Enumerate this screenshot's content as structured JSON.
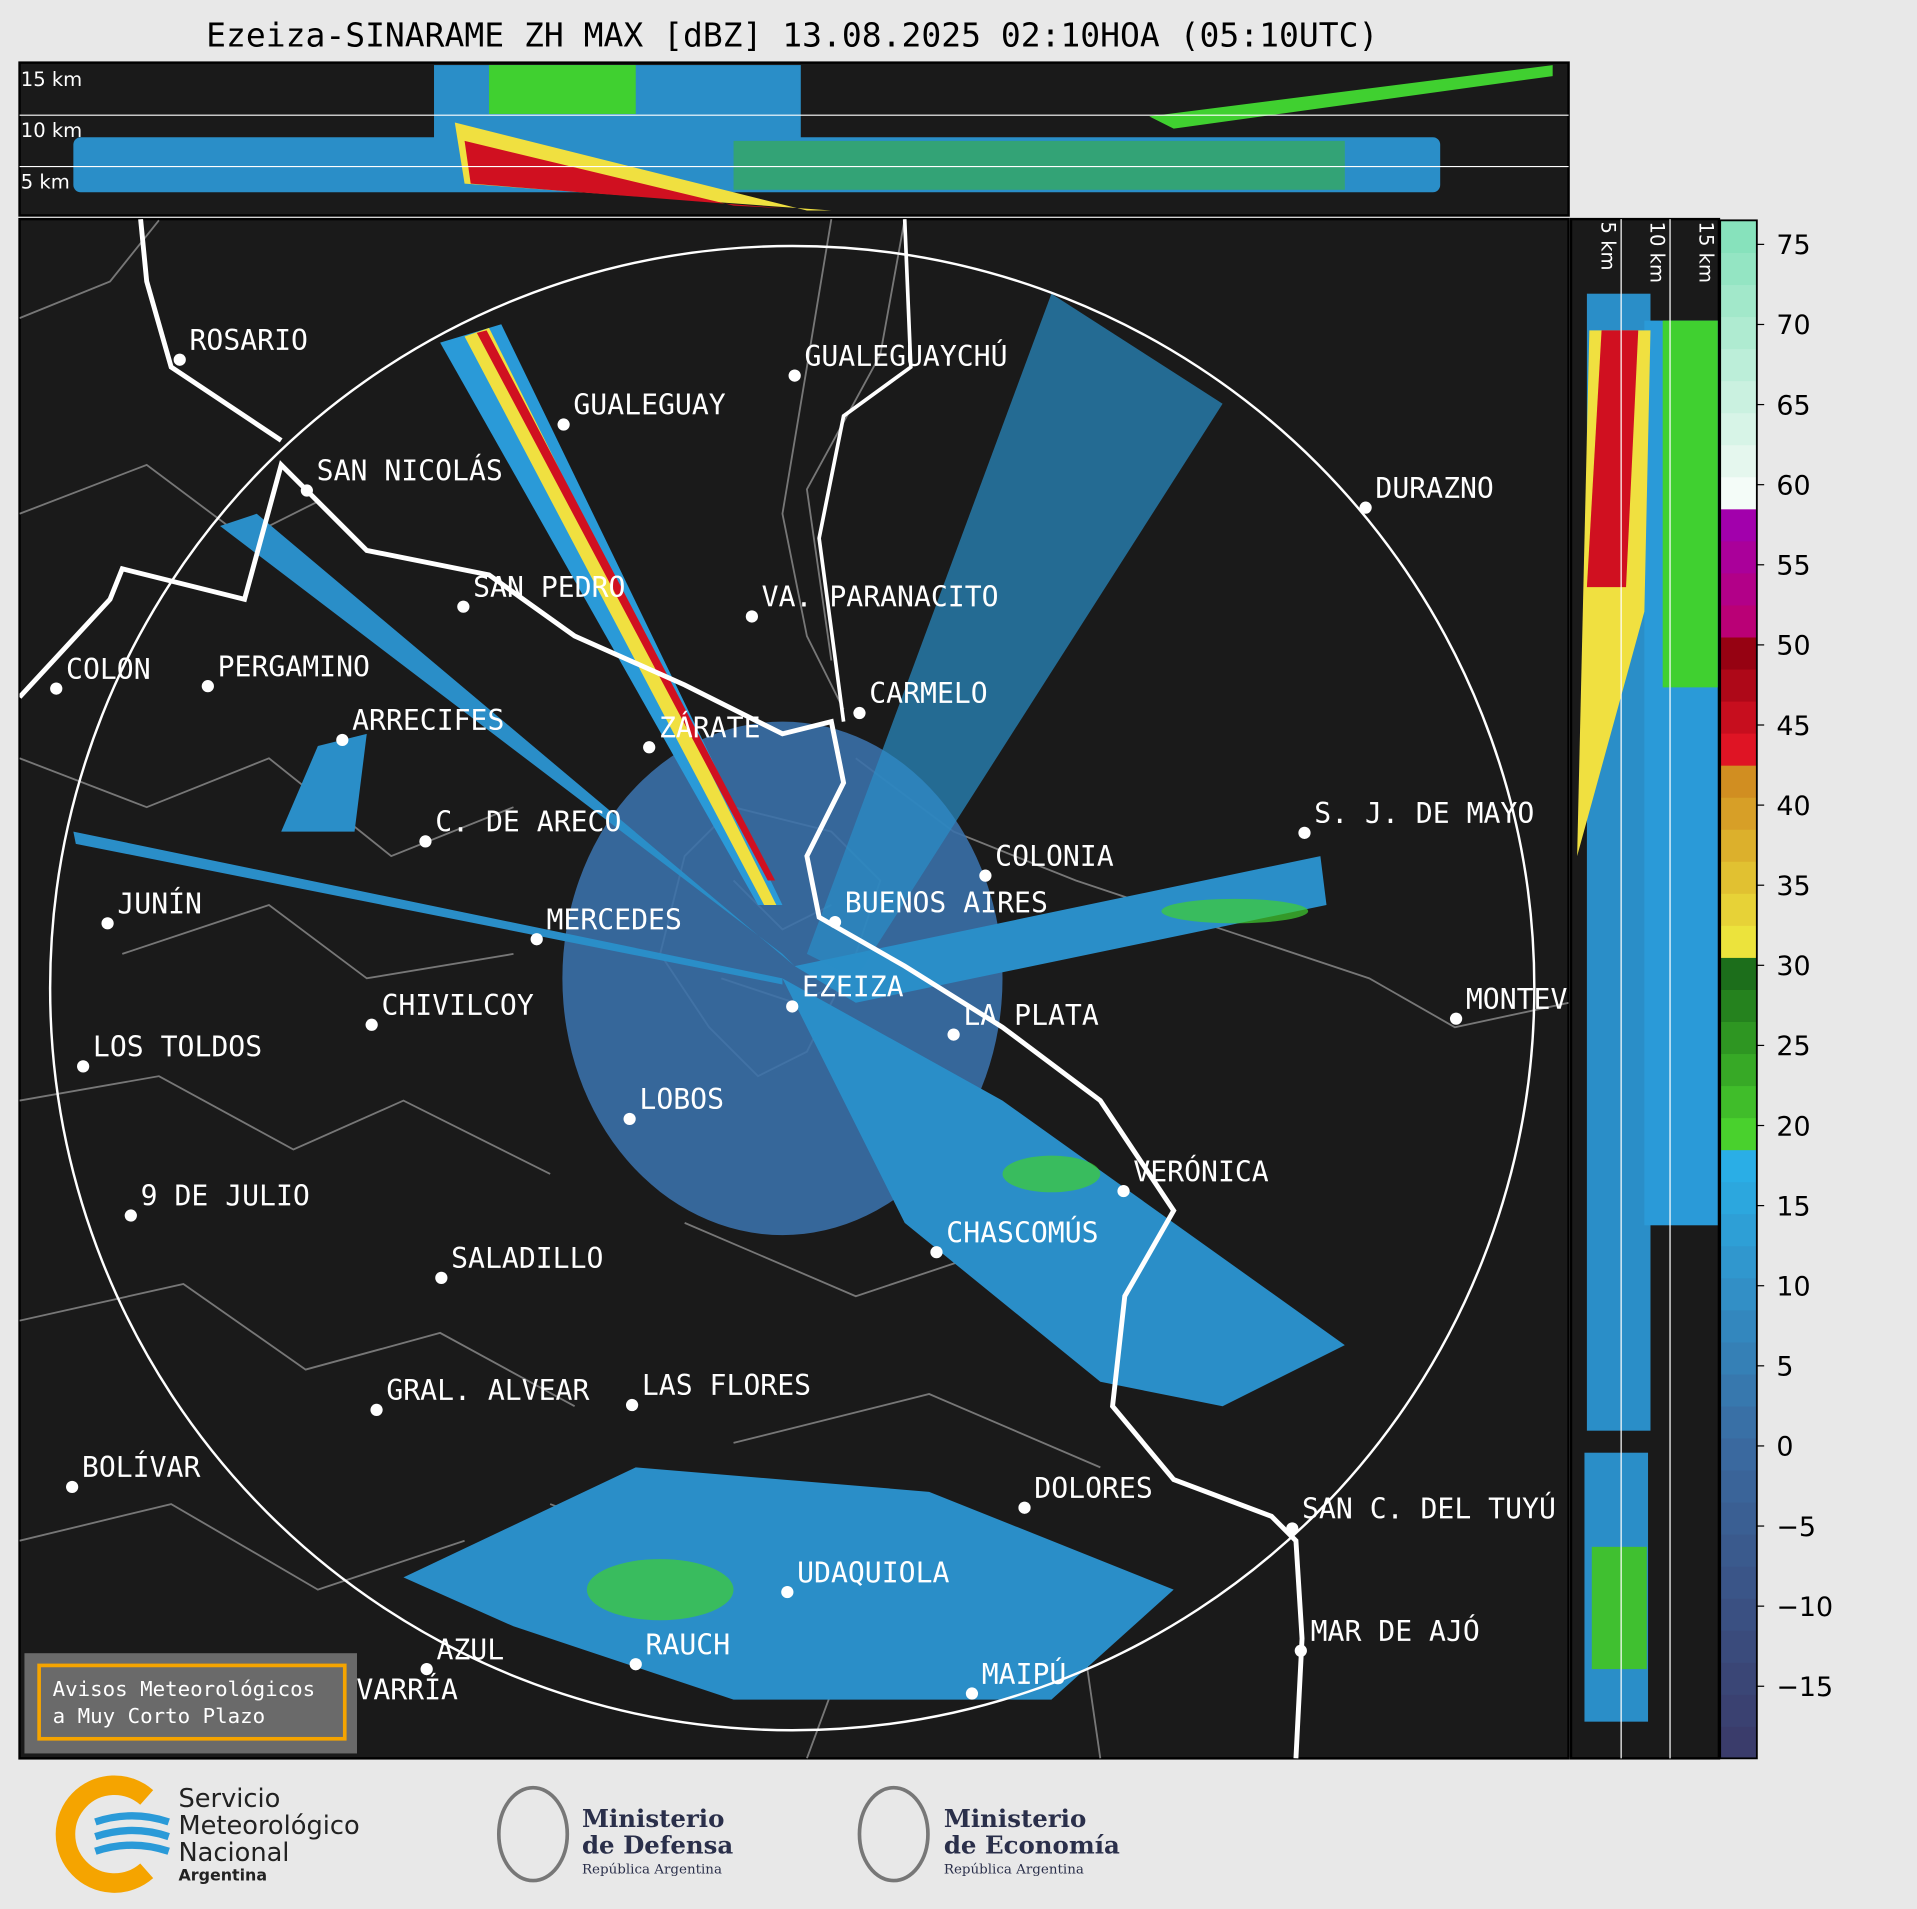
{
  "title": "Ezeiza-SINARAME ZH MAX [dBZ] 13.08.2025 02:10HOA (05:10UTC)",
  "height_labels": [
    "15 km",
    "10 km",
    "5 km"
  ],
  "cities": [
    "ROSARIO",
    "GUALEGUAYCHÚ",
    "GUALEGUAY",
    "SAN NICOLÁS",
    "DURAZNO",
    "SAN PEDRO",
    "VA. PARANACITO",
    "COLON",
    "PERGAMINO",
    "CARMELO",
    "ARRECIFES",
    "ZÁRATE",
    "S. J. DE MAYO",
    "C. DE ARECO",
    "COLONIA",
    "BUENOS AIRES",
    "JUNÍN",
    "MERCEDES",
    "EZEIZA",
    "MONTEVIDEO",
    "CHIVILCOY",
    "LA PLATA",
    "LOS TOLDOS",
    "LOBOS",
    "VERÓNICA",
    "9 DE JULIO",
    "CHASCOMÚS",
    "SALADILLO",
    "GRAL. ALVEAR",
    "LAS FLORES",
    "BOLÍVAR",
    "DOLORES",
    "SAN C. DEL TUYÚ",
    "UDAQUIOLA",
    "MAR DE AJÓ",
    "AZUL",
    "RAUCH",
    "OLAVARRÍA",
    "MAIPÚ"
  ],
  "colorbar": {
    "clim": [
      -19.5,
      76.5
    ],
    "ticks": [
      75,
      70,
      65,
      60,
      55,
      50,
      45,
      40,
      35,
      30,
      25,
      20,
      15,
      10,
      5,
      0,
      {
        "value": -5,
        "label": "−5"
      },
      {
        "value": -10,
        "label": "−10"
      },
      {
        "value": -15,
        "label": "−15"
      }
    ]
  },
  "notice": [
    "Avisos Meteorológicos",
    "a Muy Corto Plazo"
  ],
  "logos": [
    {
      "lines": [
        "Servicio",
        "Meteorológico",
        "Nacional",
        "Argentina"
      ]
    },
    {
      "lines": [
        "Ministerio",
        "de Defensa",
        "República Argentina"
      ]
    },
    {
      "lines": [
        "Ministerio",
        "de Economía",
        "República Argentina"
      ]
    }
  ]
}
